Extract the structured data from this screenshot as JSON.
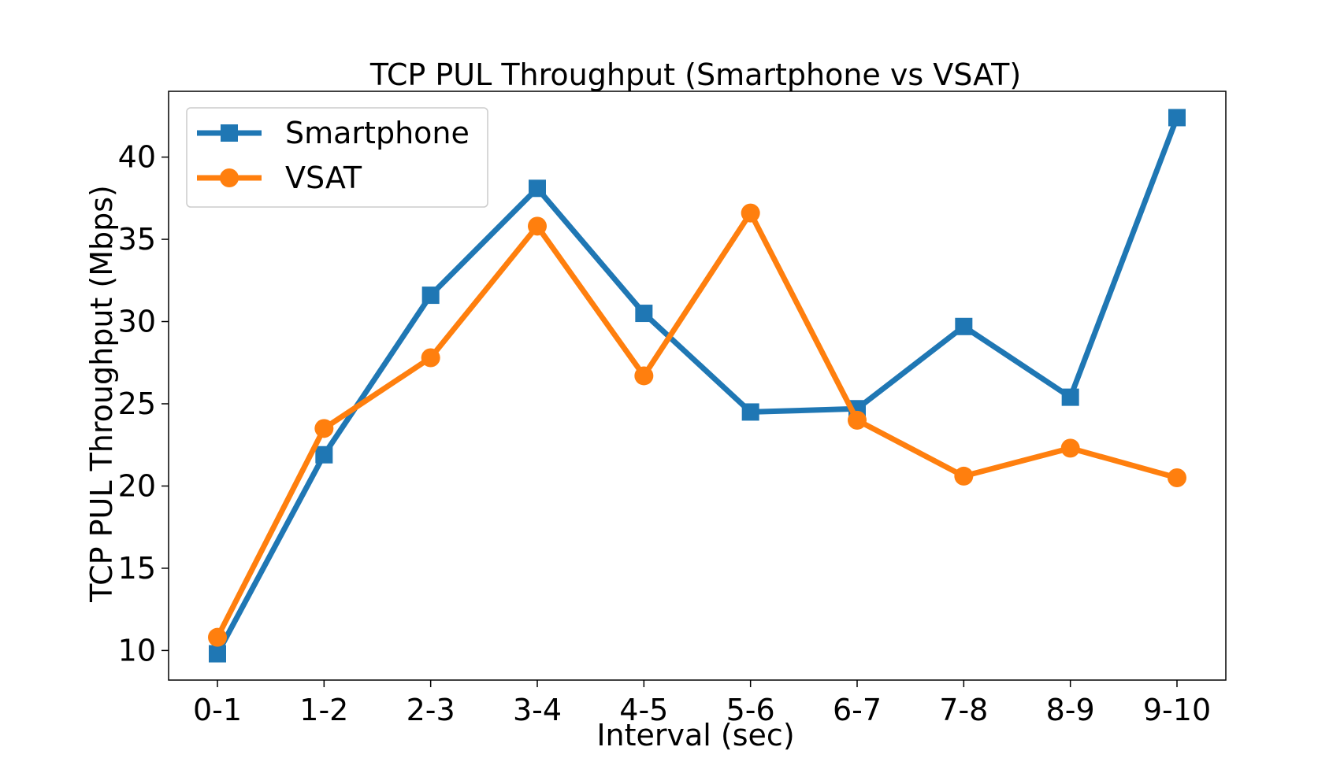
{
  "chart_data": {
    "type": "line",
    "title": "TCP PUL Throughput (Smartphone vs VSAT)",
    "xlabel": "Interval (sec)",
    "ylabel": "TCP PUL Throughput (Mbps)",
    "categories": [
      "0-1",
      "1-2",
      "2-3",
      "3-4",
      "4-5",
      "5-6",
      "6-7",
      "7-8",
      "8-9",
      "9-10"
    ],
    "ylim": [
      8.2,
      44.0
    ],
    "yticks": [
      10,
      15,
      20,
      25,
      30,
      35,
      40
    ],
    "grid": false,
    "legend_position": "top-left",
    "series": [
      {
        "name": "Smartphone",
        "color": "#1f77b4",
        "marker": "square",
        "values": [
          9.8,
          21.9,
          31.6,
          38.1,
          30.5,
          24.5,
          24.7,
          29.7,
          25.4,
          42.4
        ]
      },
      {
        "name": "VSAT",
        "color": "#ff7f0e",
        "marker": "circle",
        "values": [
          10.8,
          23.5,
          27.8,
          35.8,
          26.7,
          36.6,
          24.0,
          20.6,
          22.3,
          20.5
        ]
      }
    ]
  }
}
